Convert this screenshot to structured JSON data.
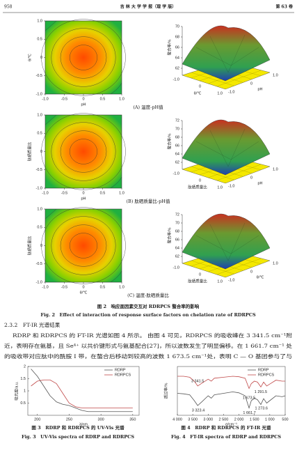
{
  "header": {
    "page": "958",
    "journal": "吉 林 大 学 学 报（理 学 版）",
    "volume": "第 63 卷"
  },
  "figure2": {
    "panels": [
      {
        "caption": "(A) 温度-pH值",
        "contour": {
          "xlabel": "pH",
          "ylabel": "θ/℃",
          "xticks": [
            "-1.0",
            "-0.5",
            "0",
            "0.5",
            "1.0"
          ],
          "yticks": [
            "-1.0",
            "-0.5",
            "0",
            "0.5",
            "1.0"
          ]
        },
        "surface": {
          "zlabel": "螯合率/%",
          "zticks": [
            "62",
            "64",
            "66",
            "68",
            "70"
          ],
          "xlabel": "θ/℃",
          "ylabel": "pH",
          "xticks": [
            "-1.0",
            "0",
            "1.0"
          ],
          "yticks": [
            "-1.0",
            "0",
            "1.0"
          ]
        }
      },
      {
        "caption": "(B) 肽硒质量比-pH值",
        "contour": {
          "xlabel": "pH",
          "ylabel": "肽硒质量比",
          "xticks": [
            "-1.0",
            "-0.5",
            "0",
            "0.5",
            "1.0"
          ],
          "yticks": [
            "-1.0",
            "-0.5",
            "0",
            "0.5",
            "1.0"
          ]
        },
        "surface": {
          "zlabel": "螯合率/%",
          "zticks": [
            "62",
            "64",
            "66",
            "68",
            "70",
            "72"
          ],
          "xlabel": "肽硒质量比",
          "ylabel": "pH",
          "xticks": [
            "-1.0",
            "0",
            "1.0"
          ],
          "yticks": [
            "-1.0",
            "0",
            "1.0"
          ]
        }
      },
      {
        "caption": "(C) 温度-肽硒质量比",
        "contour": {
          "xlabel": "θ/℃",
          "ylabel": "肽硒质量比",
          "xticks": [
            "-1.0",
            "-0.5",
            "0",
            "0.5",
            "1.0"
          ],
          "yticks": [
            "-1.0",
            "-0.5",
            "0",
            "0.5",
            "1.0"
          ]
        },
        "surface": {
          "zlabel": "螯合率/%",
          "zticks": [
            "62",
            "64",
            "66",
            "68",
            "70",
            "72"
          ],
          "xlabel": "肽硒质量比",
          "ylabel": "θ/℃",
          "xticks": [
            "-1.0",
            "0",
            "1.0"
          ],
          "yticks": [
            "-1.0",
            "0",
            "1.0"
          ]
        }
      }
    ],
    "title_cn": "图 2　响应面因素交互对 RDRPCS 螯合率的影响",
    "title_en": "Fig. 2　Effect of interaction of response surface factors on chelation rate of RDRPCS"
  },
  "section": {
    "heading": "2.3.2　FT-IR 光谱结果",
    "lines": [
      "RDRP 和 RDRPCS 的 FT-IR 光谱如图 4 所示。 由图 4 可见，RDRPCS 的吸收峰在 3 341.5 cm⁻¹附",
      "近，表明存在氨基，且 Se⁴⁺ 以共价键形式与氨基配合[27]，所以波数发生了明显偏移。在 1 661.7 cm⁻¹ 处",
      "的吸收带对应肽中的酰胺 Ⅰ 带，在螯合后移动到较高的波数 1 673.5 cm⁻¹处，表明 C — O 基团参与了与"
    ]
  },
  "figure3": {
    "chart_data": {
      "type": "line",
      "ylabel": "吸光度/a.u.",
      "xlabel": "λ/nm",
      "x": [
        190,
        200,
        210,
        220,
        230,
        240,
        250,
        260,
        270,
        280,
        300,
        320,
        350
      ],
      "series": [
        {
          "name": "RDRP",
          "color": "#555555",
          "values": [
            1.9,
            1.6,
            1.2,
            0.8,
            0.55,
            0.45,
            0.4,
            0.3,
            0.2,
            0.15,
            0.15,
            0.15,
            0.15
          ]
        },
        {
          "name": "RDRPCS",
          "color": "#c04848",
          "values": [
            1.2,
            1.4,
            1.45,
            1.45,
            1.3,
            0.9,
            0.5,
            0.35,
            0.3,
            0.3,
            0.3,
            0.3,
            0.3
          ]
        }
      ],
      "xlim": [
        185,
        360
      ],
      "xticks": [
        200,
        250,
        300,
        350
      ],
      "ylim": [
        0,
        2.0
      ],
      "yticks": [
        0.5,
        1.0,
        1.5,
        2.0
      ]
    },
    "caption_cn": "图 3　RDRP 和 RDRPCS 的 UV-Vis 光谱",
    "caption_en": "Fig. 3　UV-Vis spectra of RDRP and RDRPCS"
  },
  "figure4": {
    "chart_data": {
      "type": "line",
      "ylabel": "透过率/%",
      "xlabel": "σ/cm⁻¹",
      "x": [
        4000,
        3800,
        3600,
        3450,
        3340,
        3200,
        3000,
        2900,
        2800,
        2500,
        2200,
        2000,
        1800,
        1673,
        1600,
        1500,
        1400,
        1290,
        1200,
        1100,
        1000,
        800,
        600,
        500
      ],
      "series": [
        {
          "name": "RDRP",
          "color": "#555555",
          "values": [
            45,
            44,
            42,
            30,
            20,
            28,
            40,
            35,
            42,
            45,
            48,
            46,
            40,
            15,
            30,
            35,
            32,
            22,
            34,
            25,
            30,
            40,
            38,
            40
          ]
        },
        {
          "name": "RDRPCS",
          "color": "#c04848",
          "values": [
            80,
            80,
            78,
            70,
            60,
            66,
            74,
            70,
            76,
            78,
            80,
            79,
            76,
            55,
            65,
            70,
            68,
            58,
            68,
            60,
            64,
            72,
            70,
            70
          ]
        }
      ],
      "xlim": [
        4000,
        500
      ],
      "xticks": [
        {
          "value": 4000,
          "label": "4 000"
        },
        {
          "value": 3500,
          "label": "3 500"
        },
        {
          "value": 3000,
          "label": "3 000"
        },
        {
          "value": 2500,
          "label": "2 500"
        },
        {
          "value": 2000,
          "label": "2 000"
        },
        {
          "value": 1500,
          "label": "1 500"
        },
        {
          "value": 1000,
          "label": "1 000"
        },
        500
      ],
      "ylim": [
        0,
        100
      ],
      "annotations": [
        {
          "text": "3 341.5",
          "x": 3341.5,
          "y": 70
        },
        {
          "text": "3 323.4",
          "x": 3323.4,
          "y": 10
        },
        {
          "text": "1 673.5",
          "x": 1673.5,
          "y": 36
        },
        {
          "text": "1 661.7",
          "x": 1661.7,
          "y": 5
        },
        {
          "text": "1 291.5",
          "x": 1291.5,
          "y": 48
        },
        {
          "text": "1 273.6",
          "x": 1273.6,
          "y": 14
        }
      ]
    },
    "caption_cn": "图 4　RDRP 和 RDRPCS 的 FT-IR 光谱",
    "caption_en": "Fig. 4　FT-IR spectra of RDRP and RDRPCS"
  }
}
